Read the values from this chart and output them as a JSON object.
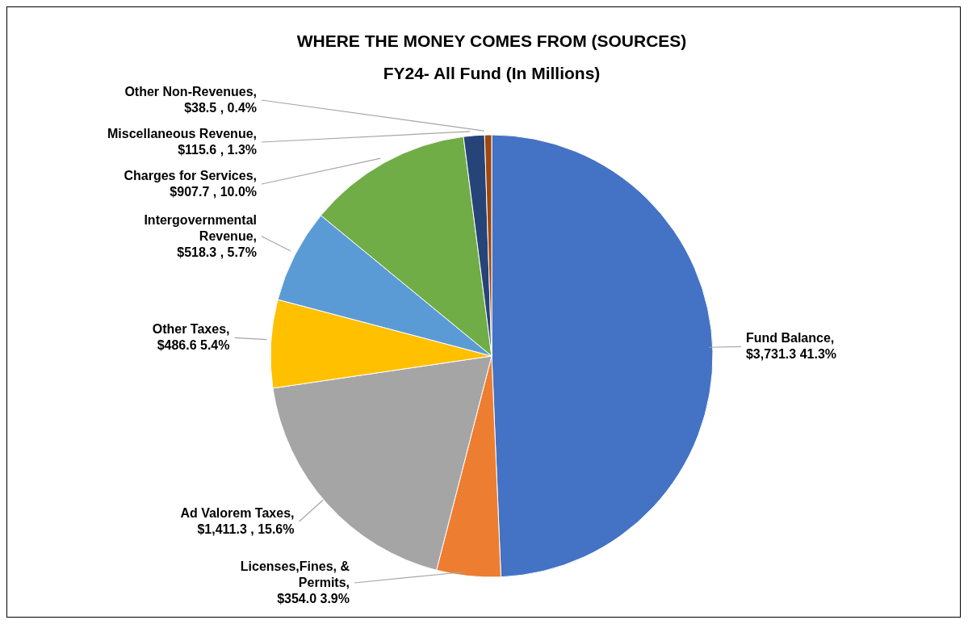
{
  "chart_data": {
    "type": "pie",
    "title": "WHERE THE MONEY COMES FROM (SOURCES)",
    "subtitle": "FY24- All Fund (In Millions)",
    "categories": [
      "Fund Balance",
      "Licenses,Fines, & Permits",
      "Ad Valorem Taxes",
      "Other Taxes",
      "Intergovernmental Revenue",
      "Charges for Services",
      "Miscellaneous Revenue",
      "Other Non-Revenues"
    ],
    "values": [
      3731.3,
      354.0,
      1411.3,
      486.6,
      518.3,
      907.7,
      115.6,
      38.5
    ],
    "colors": [
      "#4472c4",
      "#ed7d31",
      "#a5a5a5",
      "#ffc000",
      "#5b9bd5",
      "#70ad47",
      "#264478",
      "#9e480e"
    ],
    "value_labels": [
      ", $3,731.3  41.3%",
      ", $354.0 3.9%",
      ", $1,411.3 , 15.6%",
      ", $486.6 5.4%",
      ", $518.3 , 5.7%",
      ", $907.7 , 10.0%",
      ", $115.6 , 1.3%",
      ", $38.5 , 0.4%"
    ]
  }
}
